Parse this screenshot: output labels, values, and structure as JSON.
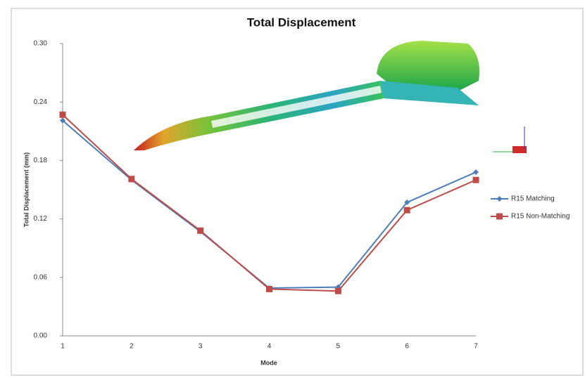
{
  "chart_data": {
    "type": "line",
    "title": "Total Displacement",
    "x_label": "Mode",
    "y_label": "Total Displacement (mm)",
    "categories": [
      "1",
      "2",
      "3",
      "4",
      "5",
      "6",
      "7"
    ],
    "series": [
      {
        "name": "R15 Matching",
        "color": "#4a7ebb",
        "marker": "diamond",
        "values": [
          0.221,
          0.16,
          0.107,
          0.049,
          0.05,
          0.137,
          0.168
        ]
      },
      {
        "name": "R15 Non-Matching",
        "color": "#be4b48",
        "marker": "square",
        "values": [
          0.227,
          0.161,
          0.108,
          0.048,
          0.046,
          0.129,
          0.16
        ]
      }
    ],
    "ylim": [
      0,
      0.3
    ],
    "yticks": [
      {
        "value": 0,
        "label": "0.00"
      },
      {
        "value": 0.06,
        "label": "0.06"
      },
      {
        "value": 0.12,
        "label": "0.12"
      },
      {
        "value": 0.18,
        "label": "0.18"
      },
      {
        "value": 0.24,
        "label": "0.24"
      },
      {
        "value": 0.3,
        "label": "0.30"
      }
    ],
    "grid": false,
    "legend": "right"
  }
}
